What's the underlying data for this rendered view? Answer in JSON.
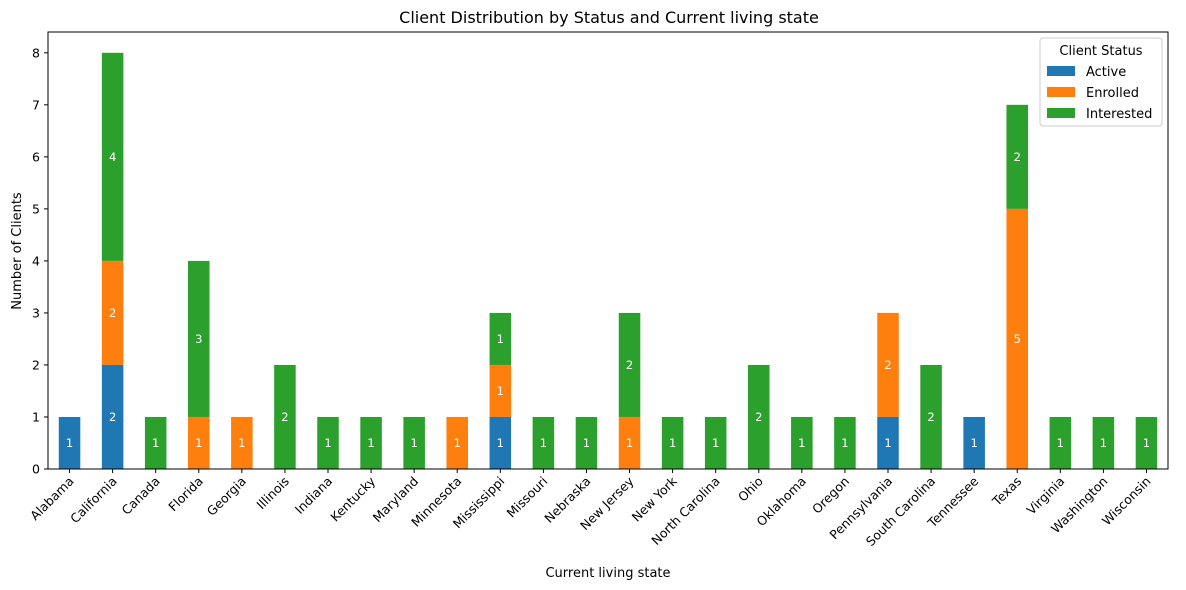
{
  "chart_data": {
    "type": "bar",
    "stacked": true,
    "title": "Client Distribution by Status and Current living state",
    "xlabel": "Current living state",
    "ylabel": "Number of Clients",
    "ylim": [
      0,
      8.4
    ],
    "yticks": [
      0,
      1,
      2,
      3,
      4,
      5,
      6,
      7,
      8
    ],
    "grid": false,
    "legend": {
      "title": "Client Status",
      "placement": "top-right"
    },
    "categories": [
      "Alabama",
      "California",
      "Canada",
      "Florida",
      "Georgia",
      "Illinois",
      "Indiana",
      "Kentucky",
      "Maryland",
      "Minnesota",
      "Mississippi",
      "Missouri",
      "Nebraska",
      "New Jersey",
      "New York",
      "North Carolina",
      "Ohio",
      "Oklahoma",
      "Oregon",
      "Pennsylvania",
      "South Carolina",
      "Tennessee",
      "Texas",
      "Virginia",
      "Washington",
      "Wisconsin"
    ],
    "series": [
      {
        "name": "Active",
        "color": "#1f77b4",
        "values": [
          1,
          2,
          0,
          0,
          0,
          0,
          0,
          0,
          0,
          0,
          1,
          0,
          0,
          0,
          0,
          0,
          0,
          0,
          0,
          1,
          0,
          1,
          0,
          0,
          0,
          0
        ]
      },
      {
        "name": "Enrolled",
        "color": "#ff7f0e",
        "values": [
          0,
          2,
          0,
          1,
          1,
          0,
          0,
          0,
          0,
          1,
          1,
          0,
          0,
          1,
          0,
          0,
          0,
          0,
          0,
          2,
          0,
          0,
          5,
          0,
          0,
          0
        ]
      },
      {
        "name": "Interested",
        "color": "#2ca02c",
        "values": [
          0,
          4,
          1,
          3,
          0,
          2,
          1,
          1,
          1,
          0,
          1,
          1,
          1,
          2,
          1,
          1,
          2,
          1,
          1,
          0,
          2,
          0,
          2,
          1,
          1,
          1
        ]
      }
    ]
  }
}
